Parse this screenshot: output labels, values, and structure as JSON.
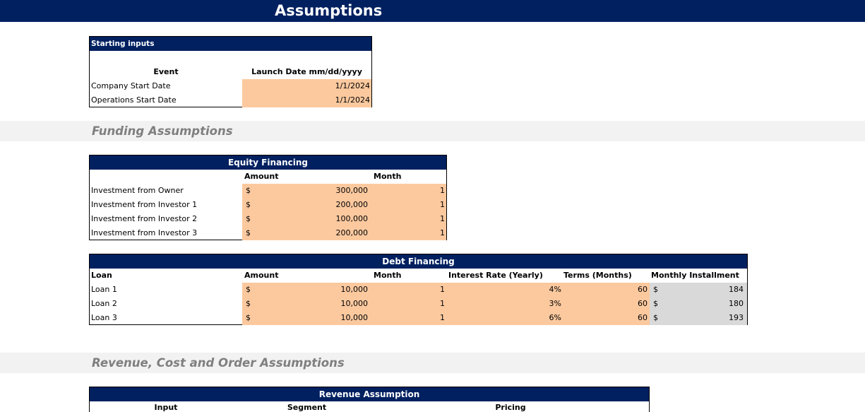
{
  "page_title": "Assumptions",
  "starting_inputs": {
    "header": "Starting inputs",
    "col_event": "Event",
    "col_date": "Launch Date mm/dd/yyyy",
    "rows": [
      {
        "event": "Company Start Date",
        "date": "1/1/2024"
      },
      {
        "event": "Operations Start Date",
        "date": "1/1/2024"
      }
    ]
  },
  "funding_section": "Funding Assumptions",
  "equity": {
    "header": "Equity Financing",
    "col_amount": "Amount",
    "col_month": "Month",
    "currency": "$",
    "rows": [
      {
        "label": "Investment from Owner",
        "amount": "300,000",
        "month": "1"
      },
      {
        "label": "Investment from Investor 1",
        "amount": "200,000",
        "month": "1"
      },
      {
        "label": "Investment from Investor 2",
        "amount": "100,000",
        "month": "1"
      },
      {
        "label": "Investment from Investor 3",
        "amount": "200,000",
        "month": "1"
      }
    ]
  },
  "debt": {
    "header": "Debt Financing",
    "col_loan": "Loan",
    "col_amount": "Amount",
    "col_month": "Month",
    "col_rate": "Interest Rate (Yearly)",
    "col_terms": "Terms (Months)",
    "col_installment": "Monthly Installment",
    "currency": "$",
    "rows": [
      {
        "loan": "Loan 1",
        "amount": "10,000",
        "month": "1",
        "rate": "4%",
        "terms": "60",
        "installment": "184"
      },
      {
        "loan": "Loan 2",
        "amount": "10,000",
        "month": "1",
        "rate": "3%",
        "terms": "60",
        "installment": "180"
      },
      {
        "loan": "Loan 3",
        "amount": "10,000",
        "month": "1",
        "rate": "6%",
        "terms": "60",
        "installment": "193"
      }
    ]
  },
  "revenue_section": "Revenue, Cost and Order Assumptions",
  "revenue": {
    "header": "Revenue Assumption",
    "col_input": "Input",
    "col_segment": "Segment",
    "col_pricing": "Pricing"
  },
  "colors": {
    "navy": "#002060",
    "input_fill": "#fcc99f",
    "calc_fill": "#d9d9d9",
    "band": "#f2f2f2",
    "band_text": "#7f7f7f"
  }
}
